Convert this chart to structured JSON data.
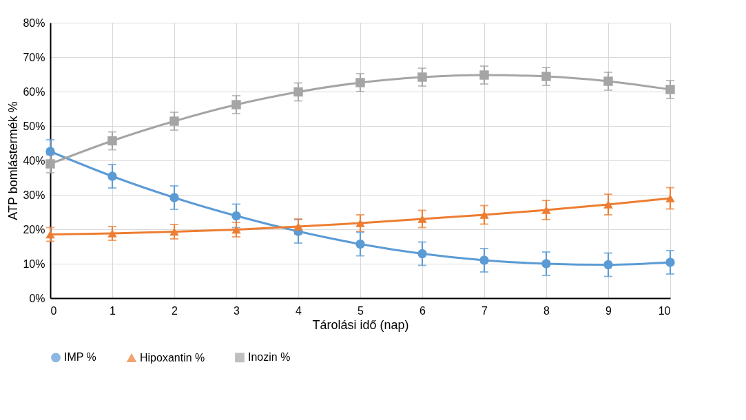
{
  "chart_data": {
    "type": "line",
    "xlabel": "Tárolási idő (nap)",
    "ylabel": "ATP bomlástermék %",
    "x": [
      0,
      1,
      2,
      3,
      4,
      5,
      6,
      7,
      8,
      9,
      10
    ],
    "xlim": [
      0,
      10
    ],
    "xticks": [
      0,
      1,
      2,
      3,
      4,
      5,
      6,
      7,
      8,
      9,
      10
    ],
    "ylim": [
      0,
      80
    ],
    "yticks": [
      {
        "value": 0,
        "label": "0%"
      },
      {
        "value": 10,
        "label": "10%"
      },
      {
        "value": 20,
        "label": "20%"
      },
      {
        "value": 30,
        "label": "30%"
      },
      {
        "value": 40,
        "label": "40%"
      },
      {
        "value": 50,
        "label": "50%"
      },
      {
        "value": 60,
        "label": "60%"
      },
      {
        "value": 70,
        "label": "70%"
      },
      {
        "value": 80,
        "label": "80%"
      }
    ],
    "grid": true,
    "legend": "bottom",
    "line_style": "solid",
    "series": [
      {
        "name": "IMP %",
        "color": "#5b9bd5",
        "marker": "circle",
        "values": [
          42.6,
          35.4,
          29.2,
          23.9,
          19.4,
          15.7,
          12.9,
          11.0,
          10.0,
          9.7,
          10.4
        ],
        "errors": [
          3.4,
          3.4,
          3.4,
          3.4,
          3.4,
          3.4,
          3.4,
          3.4,
          3.4,
          3.4,
          3.4
        ]
      },
      {
        "name": "Hipoxantin %",
        "color": "#ed7d31",
        "marker": "triangle",
        "values": [
          18.5,
          18.8,
          19.3,
          19.9,
          20.8,
          21.8,
          23.0,
          24.2,
          25.6,
          27.2,
          29.0
        ],
        "errors": [
          2.0,
          2.0,
          2.1,
          2.1,
          2.2,
          2.4,
          2.5,
          2.7,
          2.8,
          3.0,
          3.1
        ]
      },
      {
        "name": "Inozin %",
        "color": "#a5a5a5",
        "marker": "square",
        "values": [
          39.0,
          45.7,
          51.4,
          56.2,
          59.9,
          62.6,
          64.2,
          64.8,
          64.4,
          63.0,
          60.6
        ],
        "errors": [
          2.6,
          2.6,
          2.6,
          2.6,
          2.6,
          2.6,
          2.6,
          2.6,
          2.6,
          2.6,
          2.6
        ]
      }
    ]
  }
}
